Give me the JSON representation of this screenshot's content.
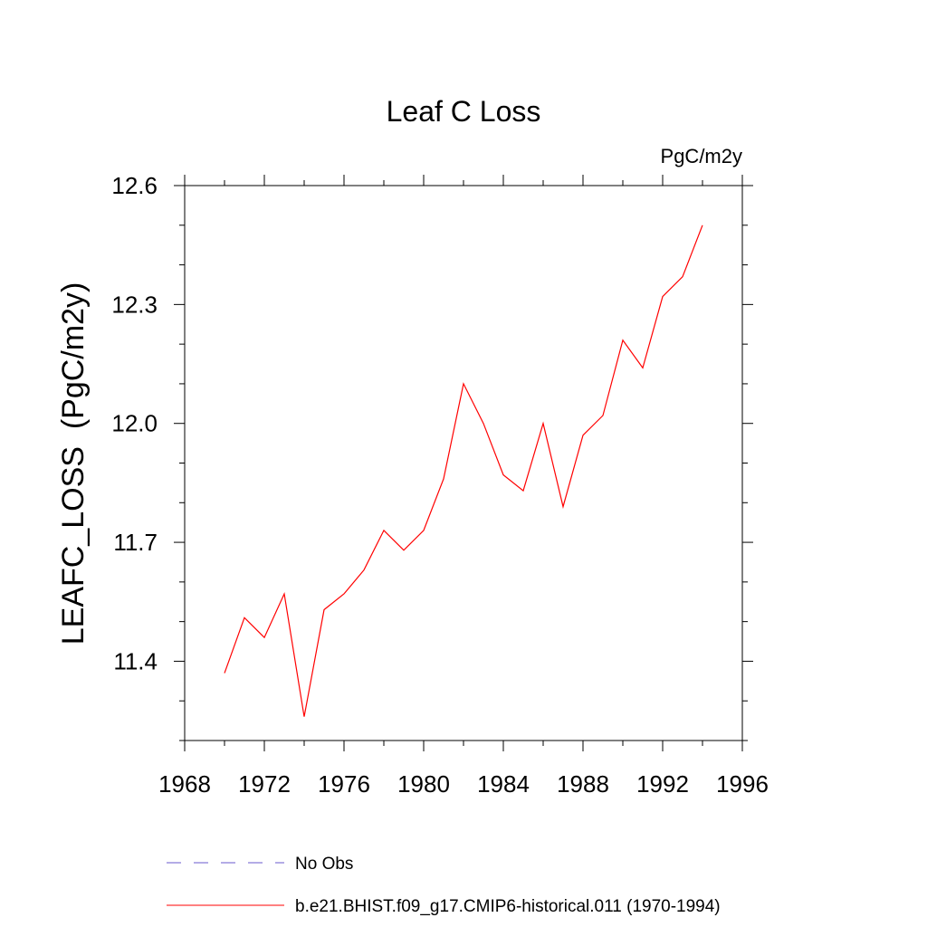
{
  "chart_data": {
    "type": "line",
    "title": "Leaf C Loss",
    "units_label": "PgC/m2y",
    "ylabel": "LEAFC_LOSS  (PgC/m2y)",
    "xlabel": "",
    "xlim": [
      1968,
      1996
    ],
    "ylim": [
      11.2,
      12.6
    ],
    "x_ticks": [
      1968,
      1972,
      1976,
      1980,
      1984,
      1988,
      1992,
      1996
    ],
    "x_tick_labels": [
      "1968",
      "1972",
      "1976",
      "1980",
      "1984",
      "1988",
      "1992",
      "1996"
    ],
    "y_ticks": [
      11.4,
      11.7,
      12.0,
      12.3,
      12.6
    ],
    "y_tick_labels": [
      "11.4",
      "11.7",
      "12.0",
      "12.3",
      "12.6"
    ],
    "grid": false,
    "legend_position": "bottom",
    "series": [
      {
        "name": "b.e21.BHIST.f09_g17.CMIP6-historical.011 (1970-1994)",
        "color": "#ff0000",
        "style": "solid",
        "x": [
          1970,
          1971,
          1972,
          1973,
          1974,
          1975,
          1976,
          1977,
          1978,
          1979,
          1980,
          1981,
          1982,
          1983,
          1984,
          1985,
          1986,
          1987,
          1988,
          1989,
          1990,
          1991,
          1992,
          1993,
          1994
        ],
        "y": [
          11.37,
          11.51,
          11.46,
          11.57,
          11.26,
          11.53,
          11.57,
          11.63,
          11.73,
          11.68,
          11.73,
          11.86,
          12.1,
          12.0,
          11.87,
          11.83,
          12.0,
          11.79,
          11.97,
          12.02,
          12.21,
          12.14,
          12.32,
          12.37,
          12.5
        ]
      },
      {
        "name": "No Obs",
        "color": "#6a5acd",
        "style": "dashed",
        "x": [],
        "y": []
      }
    ]
  }
}
